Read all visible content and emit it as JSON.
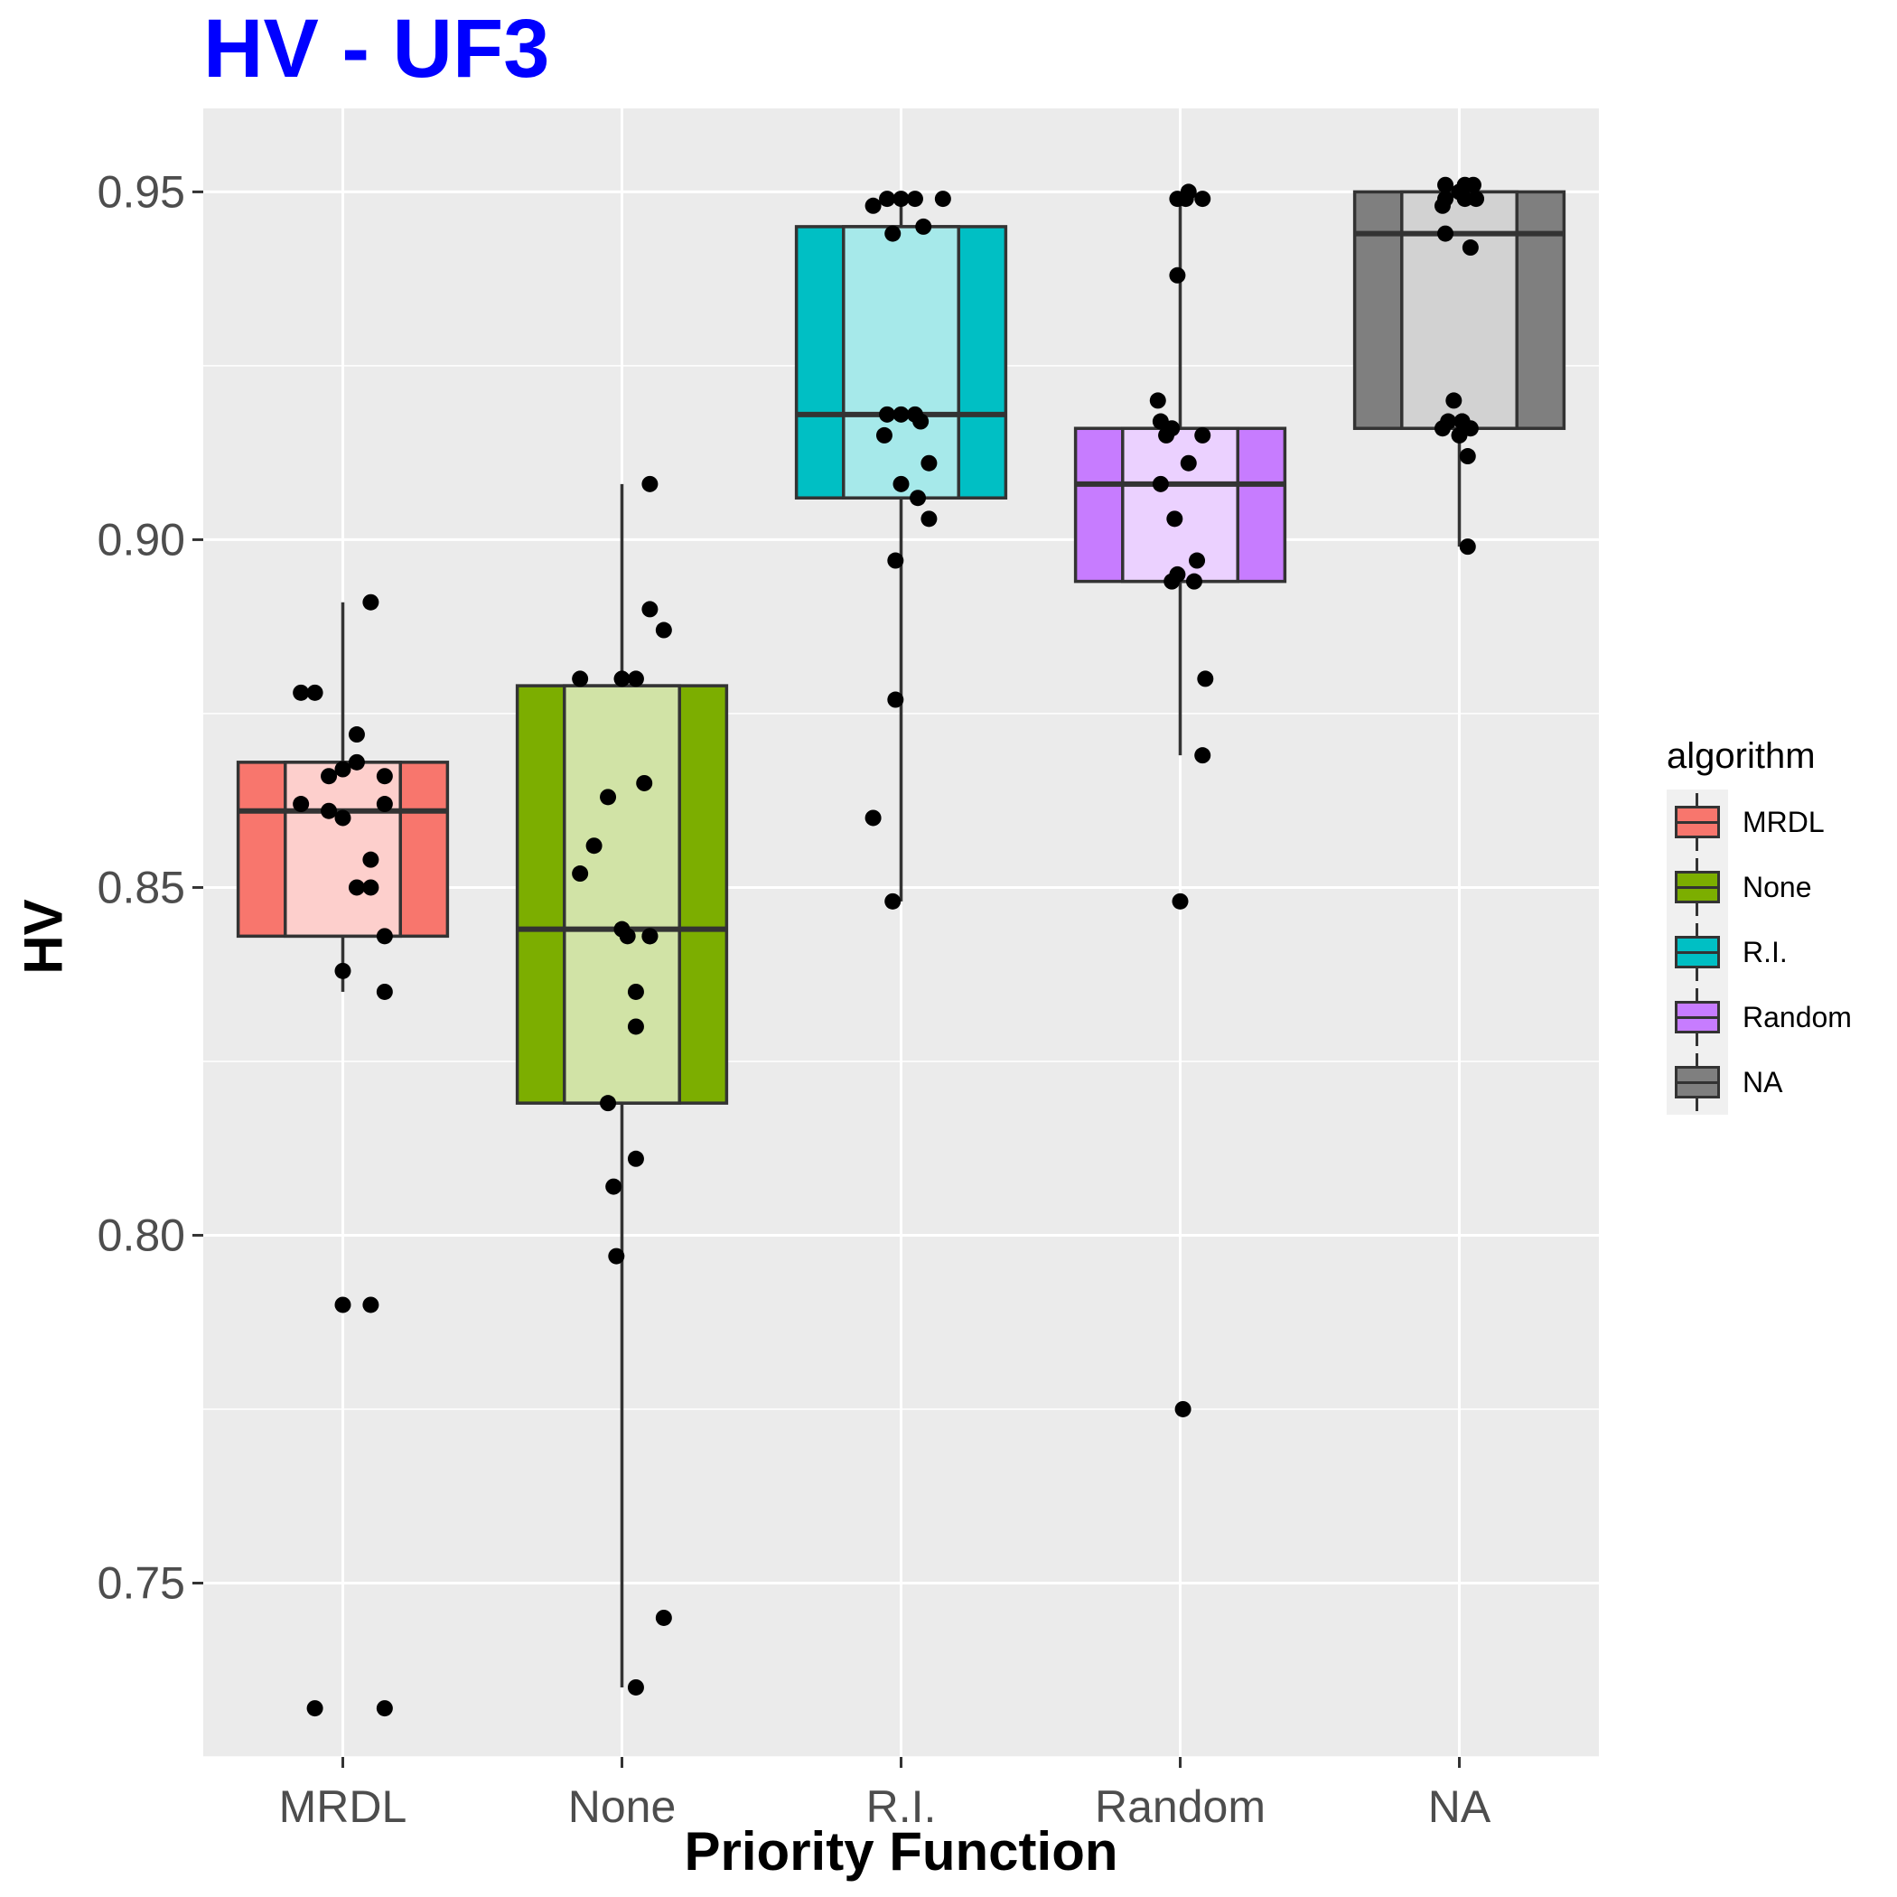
{
  "title": "HV - UF3",
  "colors": {
    "title": "#0000ff",
    "panel_bg": "#ebebeb",
    "grid": "#ffffff",
    "MRDL": "#f8766d",
    "None": "#7cae00",
    "R.I.": "#00bfc4",
    "Random": "#c77cff",
    "NA": "#7f7f7f"
  },
  "legend": {
    "title": "algorithm",
    "placement": "right",
    "items": [
      "MRDL",
      "None",
      "R.I.",
      "Random",
      "NA"
    ]
  },
  "chart_data": {
    "type": "box",
    "title": "HV - UF3",
    "xlabel": "Priority Function",
    "ylabel": "HV",
    "categories": [
      "MRDL",
      "None",
      "R.I.",
      "Random",
      "NA"
    ],
    "ylim": [
      0.725,
      0.962
    ],
    "yticks": [
      0.75,
      0.8,
      0.85,
      0.9,
      0.95
    ],
    "ytick_labels": [
      "0.75",
      "0.80",
      "0.85",
      "0.90",
      "0.95"
    ],
    "grid": true,
    "boxes": [
      {
        "name": "MRDL",
        "whisker_low": 0.835,
        "q1": 0.843,
        "median": 0.861,
        "q3": 0.868,
        "whisker_high": 0.891
      },
      {
        "name": "None",
        "whisker_low": 0.735,
        "q1": 0.819,
        "median": 0.844,
        "q3": 0.879,
        "whisker_high": 0.908
      },
      {
        "name": "R.I.",
        "whisker_low": 0.848,
        "q1": 0.906,
        "median": 0.918,
        "q3": 0.945,
        "whisker_high": 0.949
      },
      {
        "name": "Random",
        "whisker_low": 0.869,
        "q1": 0.894,
        "median": 0.908,
        "q3": 0.916,
        "whisker_high": 0.949
      },
      {
        "name": "NA",
        "whisker_low": 0.899,
        "q1": 0.916,
        "median": 0.944,
        "q3": 0.95,
        "whisker_high": 0.951
      }
    ],
    "points": [
      {
        "category": "MRDL",
        "jitter": [
          0.1,
          -0.1,
          -0.15,
          0.05,
          0.05,
          0.15,
          -0.05,
          0.0,
          -0.15,
          -0.05,
          0.15,
          0.0,
          0.1,
          0.1,
          0.05,
          0.15,
          0.0,
          0.15,
          -0.1,
          0.15,
          0.0,
          0.1
        ],
        "values": [
          0.891,
          0.878,
          0.878,
          0.872,
          0.868,
          0.866,
          0.866,
          0.867,
          0.862,
          0.861,
          0.862,
          0.86,
          0.854,
          0.85,
          0.85,
          0.843,
          0.838,
          0.835,
          0.732,
          0.732,
          0.79,
          0.79
        ]
      },
      {
        "category": "None",
        "jitter": [
          0.1,
          0.1,
          0.15,
          -0.15,
          0.0,
          0.05,
          -0.1,
          0.08,
          -0.15,
          -0.05,
          0.0,
          0.02,
          0.1,
          0.05,
          0.05,
          -0.05,
          0.05,
          -0.03,
          -0.02,
          0.15,
          0.05,
          0.1
        ],
        "values": [
          0.908,
          0.89,
          0.887,
          0.88,
          0.88,
          0.88,
          0.856,
          0.865,
          0.852,
          0.863,
          0.844,
          0.843,
          0.843,
          0.835,
          0.83,
          0.819,
          0.811,
          0.807,
          0.797,
          0.745,
          0.735,
          0.843
        ]
      },
      {
        "category": "R.I.",
        "jitter": [
          -0.1,
          -0.05,
          0.0,
          0.05,
          0.08,
          0.15,
          -0.03,
          0.05,
          -0.05,
          0.0,
          0.07,
          -0.06,
          0.1,
          0.0,
          0.06,
          0.1,
          -0.02,
          -0.02,
          -0.1,
          -0.03
        ],
        "values": [
          0.948,
          0.949,
          0.949,
          0.949,
          0.945,
          0.949,
          0.944,
          0.918,
          0.918,
          0.918,
          0.917,
          0.915,
          0.911,
          0.908,
          0.906,
          0.903,
          0.897,
          0.877,
          0.86,
          0.848
        ]
      },
      {
        "category": "Random",
        "jitter": [
          0.02,
          0.03,
          0.08,
          -0.01,
          -0.08,
          -0.07,
          -0.03,
          -0.05,
          0.08,
          -0.07,
          0.03,
          -0.02,
          -0.01,
          0.06,
          0.05,
          -0.03,
          0.09,
          0.08,
          0.0,
          0.01,
          -0.01
        ],
        "values": [
          0.949,
          0.95,
          0.949,
          0.938,
          0.92,
          0.917,
          0.916,
          0.915,
          0.915,
          0.908,
          0.911,
          0.903,
          0.895,
          0.897,
          0.894,
          0.894,
          0.88,
          0.869,
          0.848,
          0.775,
          0.949
        ]
      },
      {
        "category": "NA",
        "jitter": [
          -0.05,
          0.02,
          0.05,
          0.0,
          0.06,
          -0.05,
          0.02,
          -0.06,
          -0.05,
          0.04,
          -0.02,
          0.01,
          0.04,
          0.01,
          -0.06,
          0.0,
          0.03,
          -0.04,
          0.03
        ],
        "values": [
          0.951,
          0.951,
          0.951,
          0.95,
          0.949,
          0.949,
          0.949,
          0.948,
          0.944,
          0.942,
          0.92,
          0.917,
          0.916,
          0.917,
          0.916,
          0.915,
          0.912,
          0.917,
          0.899
        ]
      }
    ]
  }
}
